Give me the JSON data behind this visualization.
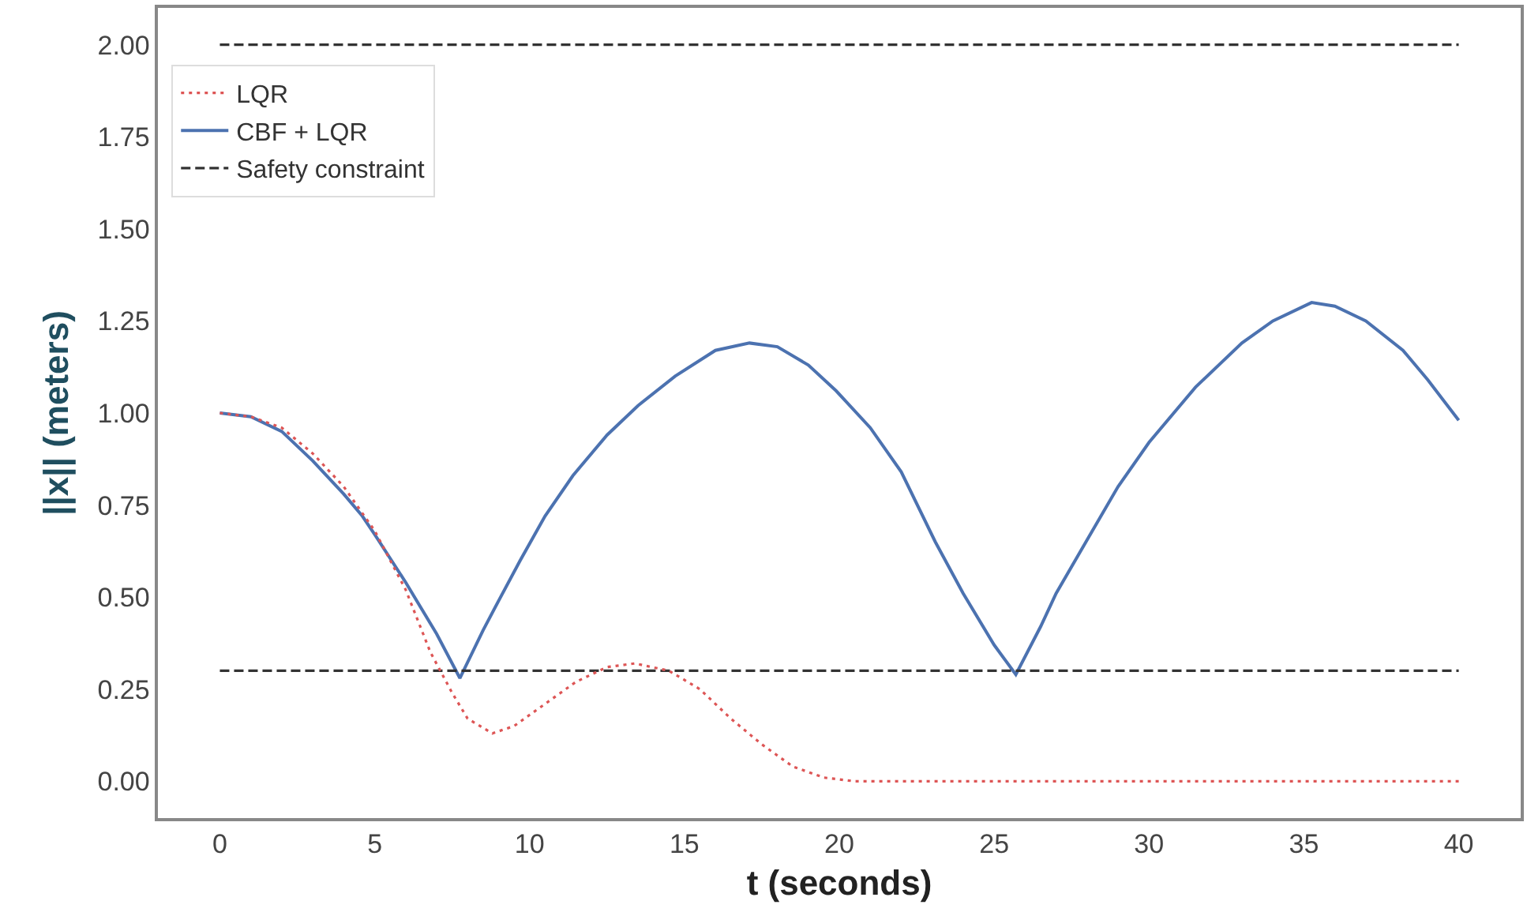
{
  "chart_data": {
    "type": "line",
    "xlabel": "t (seconds)",
    "ylabel": "||x|| (meters)",
    "xlim": [
      -2,
      42
    ],
    "xticks": [
      0,
      5,
      10,
      15,
      20,
      25,
      30,
      35,
      40
    ],
    "ylim": [
      -0.1,
      2.1
    ],
    "yticks": [
      {
        "value": 0,
        "label": "0.00"
      },
      {
        "value": 0.25,
        "label": "0.25"
      },
      {
        "value": 0.5,
        "label": "0.50"
      },
      {
        "value": 0.75,
        "label": "0.75"
      },
      {
        "value": 1,
        "label": "1.00"
      },
      {
        "value": 1.25,
        "label": "1.25"
      },
      {
        "value": 1.5,
        "label": "1.50"
      },
      {
        "value": 1.75,
        "label": "1.75"
      },
      {
        "value": 2,
        "label": "2.00"
      }
    ],
    "grid": false,
    "legend": "top left",
    "series": [
      {
        "name": "LQR",
        "color": "#dd5555",
        "line_style": "dotted",
        "x": [
          0,
          1,
          2,
          3,
          4,
          5,
          6,
          6.8,
          7.5,
          8,
          8.8,
          9.5,
          10.5,
          11.5,
          12.5,
          13.4,
          14.5,
          15.5,
          16.5,
          17.5,
          18.5,
          19.5,
          20.5,
          25,
          30,
          35,
          40
        ],
        "values": [
          1,
          0.99,
          0.96,
          0.89,
          0.8,
          0.68,
          0.52,
          0.35,
          0.24,
          0.17,
          0.13,
          0.15,
          0.21,
          0.27,
          0.31,
          0.32,
          0.3,
          0.25,
          0.17,
          0.1,
          0.04,
          0.01,
          0,
          0,
          0,
          0,
          0
        ]
      },
      {
        "name": "CBF + LQR",
        "color": "#4c72b0",
        "line_style": "solid",
        "x": [
          0,
          1,
          2,
          3,
          4,
          4.6,
          5,
          6,
          7,
          7.75,
          8.5,
          9,
          9.7,
          10.5,
          11.4,
          12.5,
          13.5,
          14.7,
          16,
          17.1,
          18,
          19,
          19.9,
          21,
          22,
          23.1,
          24,
          25,
          25.7,
          26.5,
          27,
          28.1,
          29,
          30,
          31.5,
          33,
          34,
          35.25,
          36,
          37,
          38.2,
          39,
          40
        ],
        "values": [
          1,
          0.99,
          0.95,
          0.87,
          0.78,
          0.72,
          0.67,
          0.54,
          0.4,
          0.28,
          0.41,
          0.49,
          0.6,
          0.72,
          0.83,
          0.94,
          1.02,
          1.1,
          1.17,
          1.19,
          1.18,
          1.13,
          1.06,
          0.96,
          0.84,
          0.65,
          0.51,
          0.37,
          0.29,
          0.42,
          0.51,
          0.67,
          0.8,
          0.92,
          1.07,
          1.19,
          1.25,
          1.3,
          1.29,
          1.25,
          1.17,
          1.09,
          0.98
        ]
      },
      {
        "name": "Safety constraint",
        "color": "#333333",
        "line_style": "dashed",
        "x": [
          0,
          40
        ],
        "values": [
          0.3,
          0.3
        ]
      },
      {
        "color": "#333333",
        "line_style": "dashed",
        "x": [
          0,
          40
        ],
        "values": [
          2,
          2
        ]
      }
    ]
  }
}
